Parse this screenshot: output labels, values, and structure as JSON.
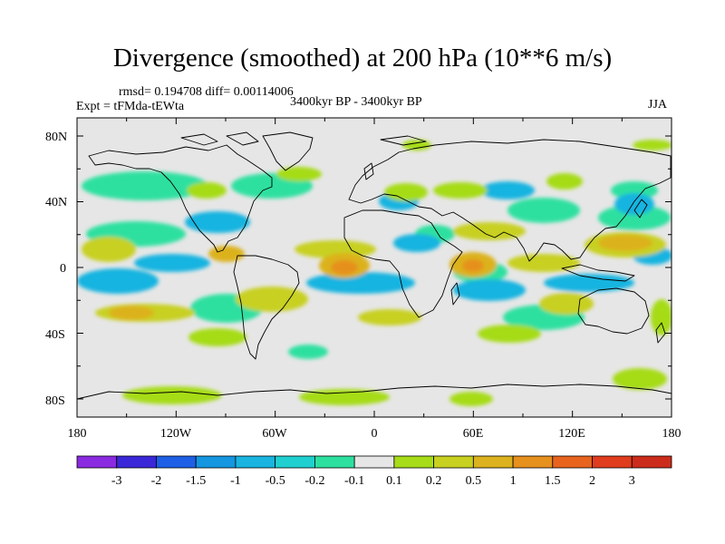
{
  "header": {
    "title": "Divergence (smoothed) at 200 hPa (10**6 m/s)",
    "stats": "rmsd= 0.194708 diff= 0.00114006",
    "experiment": "Expt = tFMda-tEWta",
    "period": "3400kyr BP - 3400kyr BP",
    "season": "JJA"
  },
  "axes": {
    "x_ticks": [
      "180",
      "120W",
      "60W",
      "0",
      "60E",
      "120E",
      "180"
    ],
    "y_ticks": [
      "80N",
      "40N",
      "0",
      "40S",
      "80S"
    ]
  },
  "colorbar": {
    "labels": [
      "-3",
      "-2",
      "-1.5",
      "-1",
      "-0.5",
      "-0.2",
      "-0.1",
      "0.1",
      "0.2",
      "0.5",
      "1",
      "1.5",
      "2",
      "3"
    ],
    "colors": [
      "#8a2be2",
      "#3a28d8",
      "#1e5fe6",
      "#1496e0",
      "#19b4e0",
      "#20d0d0",
      "#2ee0a0",
      "#e6e6e6",
      "#a6dc18",
      "#c8d020",
      "#dcb21e",
      "#e6901e",
      "#e8641e",
      "#e03c1e",
      "#cc2c1c"
    ]
  },
  "palette": {
    "map_bg": "#e6e6e6",
    "cyan": "#19b4e0",
    "green": "#2ee0a0",
    "lime": "#a6dc18",
    "olive": "#c8d020",
    "gold": "#dcb21e",
    "orange": "#e6901e"
  }
}
